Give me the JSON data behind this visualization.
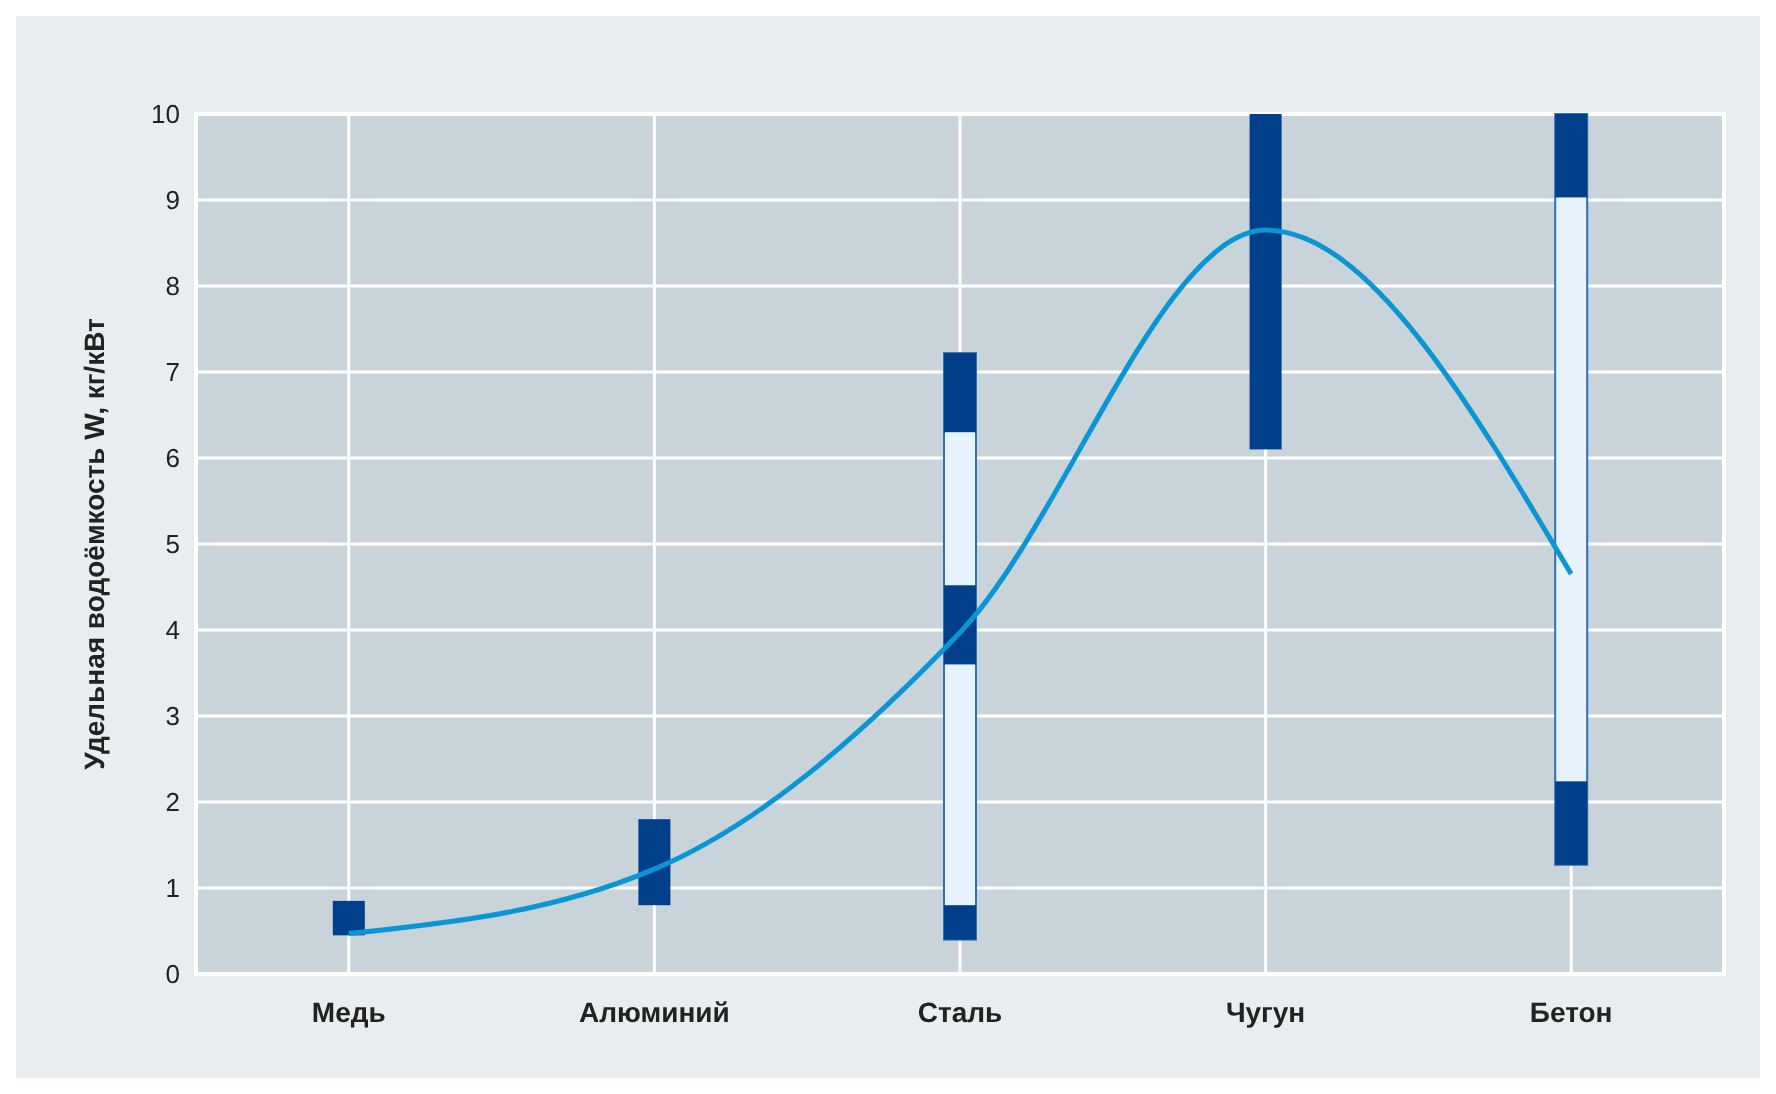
{
  "chart_data": {
    "type": "bar",
    "ylabel": "Удельная водоёмкость W, кг/кВт",
    "categories": [
      "Медь",
      "Алюминий",
      "Сталь",
      "Чугун",
      "Бетон"
    ],
    "series": [
      {
        "color": "#e6f3fc",
        "base": [
          null,
          null,
          0.4,
          null,
          1.27
        ],
        "values": [
          null,
          null,
          6.82,
          null,
          8.73
        ]
      },
      {
        "color": "#003f8a",
        "base": [
          0.45,
          0.8,
          0.4,
          6.1,
          1.27
        ],
        "values": [
          0.4,
          1.0,
          0.4,
          3.9,
          0.97
        ]
      },
      {
        "color": "#003f8a",
        "base": [
          null,
          null,
          3.6,
          null,
          9.03
        ],
        "values": [
          null,
          null,
          0.92,
          null,
          0.97
        ]
      },
      {
        "color": "#003f8a",
        "base": [
          null,
          null,
          6.3,
          null,
          null
        ],
        "values": [
          null,
          null,
          0.92,
          null,
          null
        ]
      },
      {
        "type": "line",
        "color": "#0a96d4",
        "values": [
          0.47,
          1.22,
          3.97,
          8.65,
          4.65
        ]
      }
    ],
    "ylim": [
      0,
      10
    ],
    "yticks": [
      0,
      1,
      2,
      3,
      4,
      5,
      6,
      7,
      8,
      9,
      10
    ],
    "grid": true
  }
}
